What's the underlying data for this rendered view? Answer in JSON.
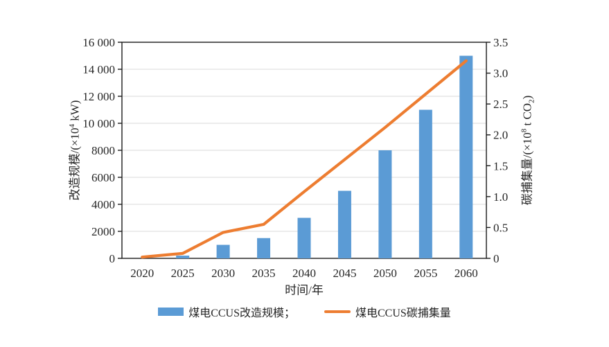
{
  "chart_data": {
    "type": "bar+line",
    "categories": [
      "2020",
      "2025",
      "2030",
      "2035",
      "2040",
      "2045",
      "2050",
      "2055",
      "2060"
    ],
    "series": [
      {
        "name": "煤电CCUS改造规模",
        "type": "bar",
        "axis": "left",
        "color": "#5B9BD5",
        "values": [
          0,
          200,
          1000,
          1500,
          3000,
          5000,
          8000,
          11000,
          15000
        ]
      },
      {
        "name": "煤电CCUS碳捕集量",
        "type": "line",
        "axis": "right",
        "color": "#ED7D31",
        "values": [
          0.02,
          0.08,
          0.42,
          0.55,
          1.08,
          1.6,
          2.12,
          2.66,
          3.2
        ]
      }
    ],
    "left_axis": {
      "title_pre": "改造规模/(×10",
      "title_sup": "4",
      "title_post": " kW)",
      "min": 0,
      "max": 16000,
      "step": 2000,
      "tick_labels": [
        "0",
        "2000",
        "4000",
        "6000",
        "8000",
        "10 000",
        "12 000",
        "14 000",
        "16 000"
      ]
    },
    "right_axis": {
      "title_pre": "碳捕集量/(×10",
      "title_sup": "8",
      "title_mid": " t CO",
      "title_sub": "2",
      "title_post": ")",
      "min": 0,
      "max": 3.5,
      "step": 0.5,
      "tick_labels": [
        "0",
        "0.5",
        "1.0",
        "1.5",
        "2.0",
        "2.5",
        "3.0",
        "3.5"
      ]
    },
    "x_axis": {
      "title": "时间/年"
    },
    "legend": [
      {
        "label": "煤电CCUS改造规模；",
        "swatch": "bar",
        "color": "#5B9BD5"
      },
      {
        "label": "煤电CCUS碳捕集量",
        "swatch": "line",
        "color": "#ED7D31"
      }
    ],
    "grid": true,
    "legend_position": "bottom",
    "styles": {
      "bar_color": "#5B9BD5",
      "line_color": "#ED7D31",
      "grid_color": "#D9D9D9",
      "axis_color": "#1a1a1a",
      "text_color": "#262626",
      "background": "#FFFFFF"
    }
  }
}
